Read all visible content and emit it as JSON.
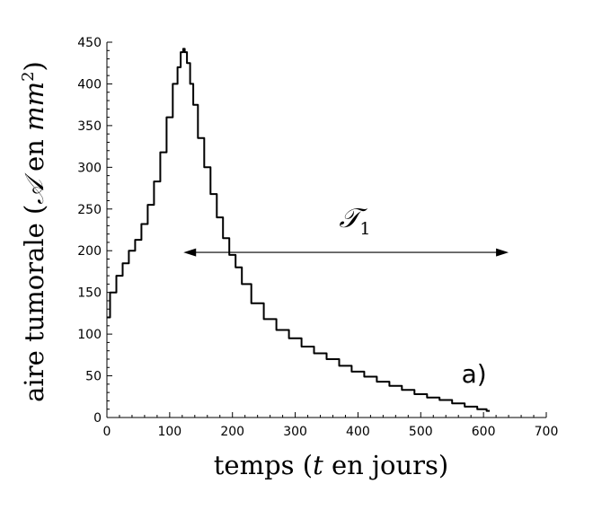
{
  "chart_data": {
    "type": "line",
    "title": "",
    "xlabel": "temps (t en jours)",
    "xlabel_parts": [
      "temps (",
      "t",
      " en jours)"
    ],
    "ylabel": "aire tumorale (𝒜 en mm²)",
    "ylabel_parts": [
      "aire tumorale (",
      "𝒜",
      " en ",
      "mm",
      "2",
      ")"
    ],
    "xlim": [
      0,
      700
    ],
    "ylim": [
      0,
      450
    ],
    "xticks": [
      0,
      100,
      200,
      300,
      400,
      500,
      600,
      700
    ],
    "yticks": [
      0,
      50,
      100,
      150,
      200,
      250,
      300,
      350,
      400,
      450
    ],
    "xtick_labels": [
      "0",
      "100",
      "200",
      "300",
      "400",
      "500",
      "600",
      "700"
    ],
    "ytick_labels": [
      "0",
      "50",
      "100",
      "150",
      "200",
      "250",
      "300",
      "350",
      "400",
      "450"
    ],
    "grid": false,
    "series": [
      {
        "x": [
          0,
          10,
          20,
          30,
          40,
          50,
          60,
          70,
          80,
          90,
          100,
          110,
          115,
          120,
          123,
          125,
          130,
          135,
          140,
          150,
          160,
          170,
          180,
          190,
          200,
          210,
          220,
          240,
          260,
          280,
          300,
          320,
          340,
          360,
          380,
          400,
          420,
          440,
          460,
          480,
          500,
          520,
          540,
          560,
          580,
          600,
          610
        ],
        "y": [
          120,
          150,
          170,
          185,
          200,
          213,
          232,
          255,
          283,
          318,
          360,
          400,
          420,
          438,
          442,
          438,
          425,
          400,
          375,
          335,
          300,
          268,
          240,
          215,
          195,
          180,
          160,
          137,
          118,
          105,
          95,
          85,
          77,
          70,
          62,
          55,
          49,
          43,
          38,
          33,
          28,
          24,
          21,
          17,
          13,
          10,
          8
        ]
      }
    ],
    "annotations": [
      {
        "type": "double-arrow",
        "x_start": 122,
        "x_end": 640,
        "y": 198,
        "label": "𝒯₁",
        "label_main": "𝒯",
        "label_sub": "1",
        "label_x": 395,
        "label_y": 228
      },
      {
        "type": "text",
        "label": "a)",
        "x": 585,
        "y": 42
      }
    ]
  }
}
